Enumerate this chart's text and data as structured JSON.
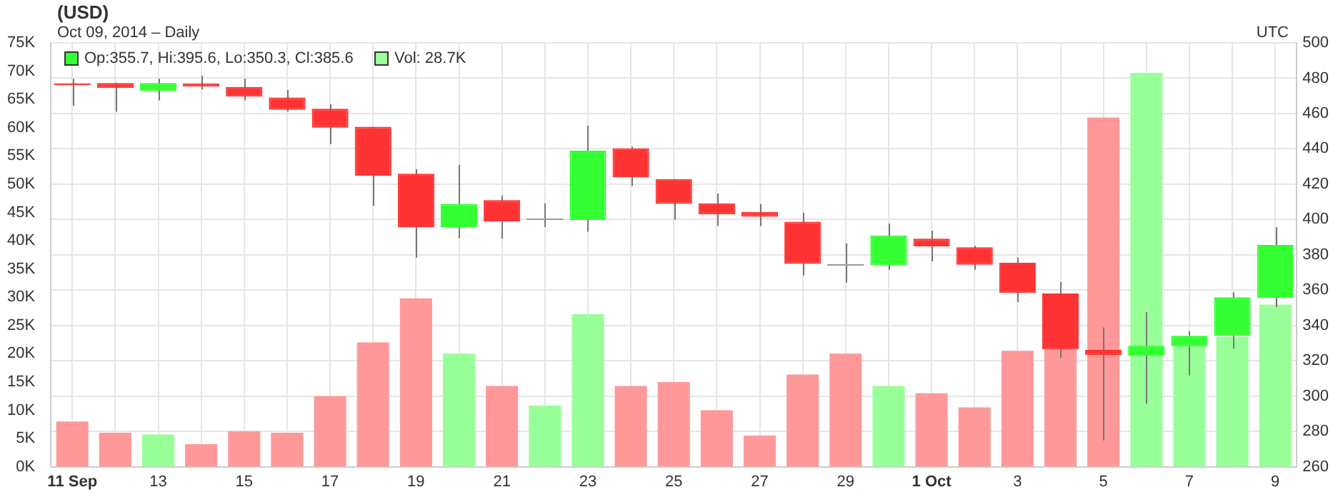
{
  "chart_data": {
    "type": "candlestick",
    "title": "(USD)",
    "subtitle": "Oct 09, 2014 – Daily",
    "annotations": [
      "Op:355.7, Hi:395.6, Lo:350.3, Cl:385.6",
      "Vol: 28.7K",
      "UTC"
    ],
    "categories": [
      "11 Sep",
      null,
      "13",
      null,
      "15",
      null,
      "17",
      null,
      "19",
      null,
      "21",
      null,
      "23",
      null,
      "25",
      null,
      "27",
      null,
      "29",
      null,
      "1 Oct",
      null,
      "3",
      null,
      "5",
      null,
      "7",
      null,
      "9"
    ],
    "ylim": [
      0,
      75000
    ],
    "yticks": [
      {
        "value": 0,
        "label": "0K"
      },
      {
        "value": 5000,
        "label": "5K"
      },
      {
        "value": 10000,
        "label": "10K"
      },
      {
        "value": 15000,
        "label": "15K"
      },
      {
        "value": 20000,
        "label": "20K"
      },
      {
        "value": 25000,
        "label": "25K"
      },
      {
        "value": 30000,
        "label": "30K"
      },
      {
        "value": 35000,
        "label": "35K"
      },
      {
        "value": 40000,
        "label": "40K"
      },
      {
        "value": 45000,
        "label": "45K"
      },
      {
        "value": 50000,
        "label": "50K"
      },
      {
        "value": 55000,
        "label": "55K"
      },
      {
        "value": 60000,
        "label": "60K"
      },
      {
        "value": 65000,
        "label": "65K"
      },
      {
        "value": 70000,
        "label": "70K"
      },
      {
        "value": 75000,
        "label": "75K"
      }
    ],
    "y2lim": [
      260,
      500
    ],
    "y2ticks": [
      260,
      280,
      300,
      320,
      340,
      360,
      380,
      400,
      420,
      440,
      460,
      480,
      500
    ],
    "grid": "y2x",
    "series": [
      {
        "axis": "y2",
        "ohlc": [
          [
            477.1,
            479.7,
            464.3,
            476
          ],
          [
            477.3,
            477.5,
            461,
            474.4
          ],
          [
            472.8,
            479.7,
            467.5,
            477.3
          ],
          [
            477.1,
            481.3,
            473.6,
            475.2
          ],
          [
            475,
            479.7,
            467.5,
            469.6
          ],
          [
            469.1,
            473.3,
            461,
            462.1
          ],
          [
            462.7,
            465.3,
            442.7,
            452
          ],
          [
            452.5,
            452.5,
            407.7,
            424.8
          ],
          [
            425.9,
            428.5,
            378.4,
            395.7
          ],
          [
            395.7,
            430.9,
            389.3,
            408.8
          ],
          [
            410.9,
            413.6,
            389.1,
            398.9
          ],
          [
            400.3,
            409.1,
            395.7,
            400.3
          ],
          [
            399.7,
            453.1,
            393.1,
            438.9
          ],
          [
            440.3,
            441.3,
            418.9,
            424
          ],
          [
            422.9,
            422.9,
            399.7,
            408.8
          ],
          [
            409.1,
            414.7,
            396.3,
            402.9
          ],
          [
            404.3,
            408.8,
            396.3,
            401.6
          ],
          [
            398.7,
            403.7,
            368.3,
            374.9
          ],
          [
            374.4,
            386.4,
            364.3,
            374.4
          ],
          [
            374.1,
            397.6,
            371.5,
            390.9
          ],
          [
            389.1,
            393.6,
            376.3,
            384.8
          ],
          [
            384.3,
            385.1,
            371.5,
            374.4
          ],
          [
            375.5,
            378.4,
            353.1,
            358.4
          ],
          [
            358.1,
            364.8,
            321.6,
            326.4
          ],
          [
            326.1,
            338.9,
            274.9,
            323.2
          ],
          [
            322.9,
            347.5,
            295.7,
            328.5
          ],
          [
            328.3,
            336.8,
            311.7,
            334.1
          ],
          [
            334.1,
            358.7,
            326.9,
            356
          ],
          [
            355.7,
            395.6,
            350.3,
            385.6
          ]
        ],
        "colors": [
          "#ff3333",
          "#ff3333",
          "#33ff33",
          "#ff3333",
          "#ff3333",
          "#ff3333",
          "#ff3333",
          "#ff3333",
          "#ff3333",
          "#33ff33",
          "#ff3333",
          "#999999",
          "#33ff33",
          "#ff3333",
          "#ff3333",
          "#ff3333",
          "#ff3333",
          "#ff3333",
          "#999999",
          "#33ff33",
          "#ff3333",
          "#ff3333",
          "#ff3333",
          "#ff3333",
          "#ff3333",
          "#33ff33",
          "#33ff33",
          "#33ff33",
          "#33ff33"
        ]
      },
      {
        "type": "bar",
        "axis": "y",
        "values": [
          8000,
          6000,
          5700,
          4000,
          6300,
          6000,
          12500,
          22000,
          29800,
          20000,
          14300,
          10800,
          27000,
          14300,
          15000,
          10000,
          5500,
          16300,
          20000,
          14300,
          13000,
          10500,
          20500,
          20800,
          61800,
          69700,
          23000,
          23000,
          28700
        ],
        "colors": [
          "#ff9999",
          "#ff9999",
          "#99ff99",
          "#ff9999",
          "#ff9999",
          "#ff9999",
          "#ff9999",
          "#ff9999",
          "#ff9999",
          "#99ff99",
          "#ff9999",
          "#99ff99",
          "#99ff99",
          "#ff9999",
          "#ff9999",
          "#ff9999",
          "#ff9999",
          "#ff9999",
          "#ff9999",
          "#99ff99",
          "#ff9999",
          "#ff9999",
          "#ff9999",
          "#ff9999",
          "#ff9999",
          "#99ff99",
          "#99ff99",
          "#99ff99",
          "#99ff99"
        ]
      }
    ]
  }
}
